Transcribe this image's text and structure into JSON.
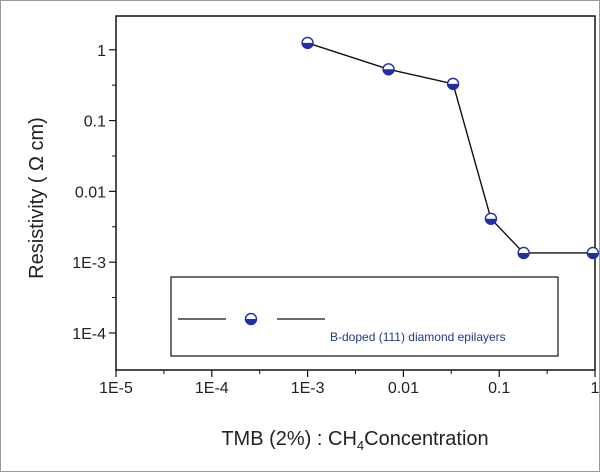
{
  "chart_data": {
    "type": "scatter",
    "title": "",
    "xlabel": "TMB (2%) : CH",
    "xlabel_subscript": "4",
    "xlabel_suffix": "Concentration",
    "ylabel": "Resistivity ( Ω cm)",
    "xscale": "log",
    "yscale": "log",
    "xlim": [
      1e-05,
      1
    ],
    "ylim": [
      3e-05,
      3
    ],
    "x_ticks": [
      {
        "value": 1e-05,
        "label": "1E-5"
      },
      {
        "value": 0.0001,
        "label": "1E-4"
      },
      {
        "value": 0.001,
        "label": "1E-3"
      },
      {
        "value": 0.01,
        "label": "0.01"
      },
      {
        "value": 0.1,
        "label": "0.1"
      },
      {
        "value": 1,
        "label": "1"
      }
    ],
    "y_ticks": [
      {
        "value": 1,
        "label": "1"
      },
      {
        "value": 0.1,
        "label": "0.1"
      },
      {
        "value": 0.01,
        "label": "0.01"
      },
      {
        "value": 0.001,
        "label": "1E-3"
      },
      {
        "value": 0.0001,
        "label": "1E-4"
      }
    ],
    "grid": false,
    "legend_position": "bottom-right",
    "series": [
      {
        "name": "B-doped (111) diamond epilayers",
        "color": "#1f2fa8",
        "line_color": "#111111",
        "marker": "half-filled-circle",
        "x": [
          0.001,
          0.007,
          0.033,
          0.082,
          0.18,
          0.95
        ],
        "y": [
          1.25,
          0.53,
          0.33,
          0.0041,
          0.00135,
          0.00135
        ]
      }
    ]
  }
}
